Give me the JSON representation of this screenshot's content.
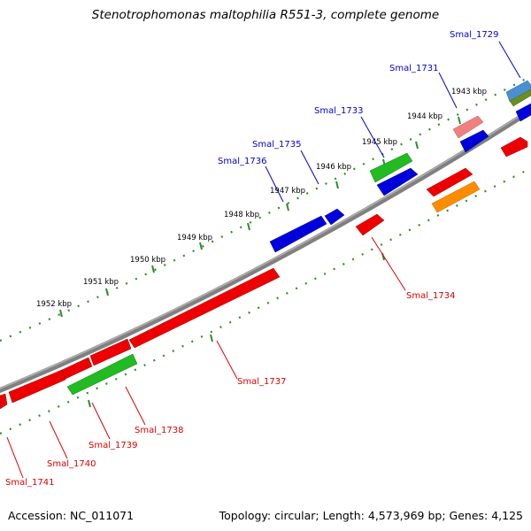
{
  "title": "Stenotrophomonas maltophilia R551-3, complete genome",
  "footer": {
    "accession": "Accession: NC_011071",
    "summary": "Topology: circular; Length: 4,573,969 bp; Genes: 4,125"
  },
  "colors": {
    "backbone": "#808080",
    "tick": "#2e8b2e",
    "forward_label": "#0000cc",
    "reverse_label": "#dd0000"
  },
  "kbp_labels": [
    "1943 kbp",
    "1944 kbp",
    "1945 kbp",
    "1946 kbp",
    "1947 kbp",
    "1948 kbp",
    "1949 kbp",
    "1950 kbp",
    "1951 kbp",
    "1952 kbp"
  ],
  "forward_genes": [
    "Smal_1729",
    "Smal_1731",
    "Smal_1733",
    "Smal_1735",
    "Smal_1736"
  ],
  "reverse_genes": [
    "Smal_1734",
    "Smal_1737",
    "Smal_1738",
    "Smal_1739",
    "Smal_1740",
    "Smal_1741"
  ]
}
